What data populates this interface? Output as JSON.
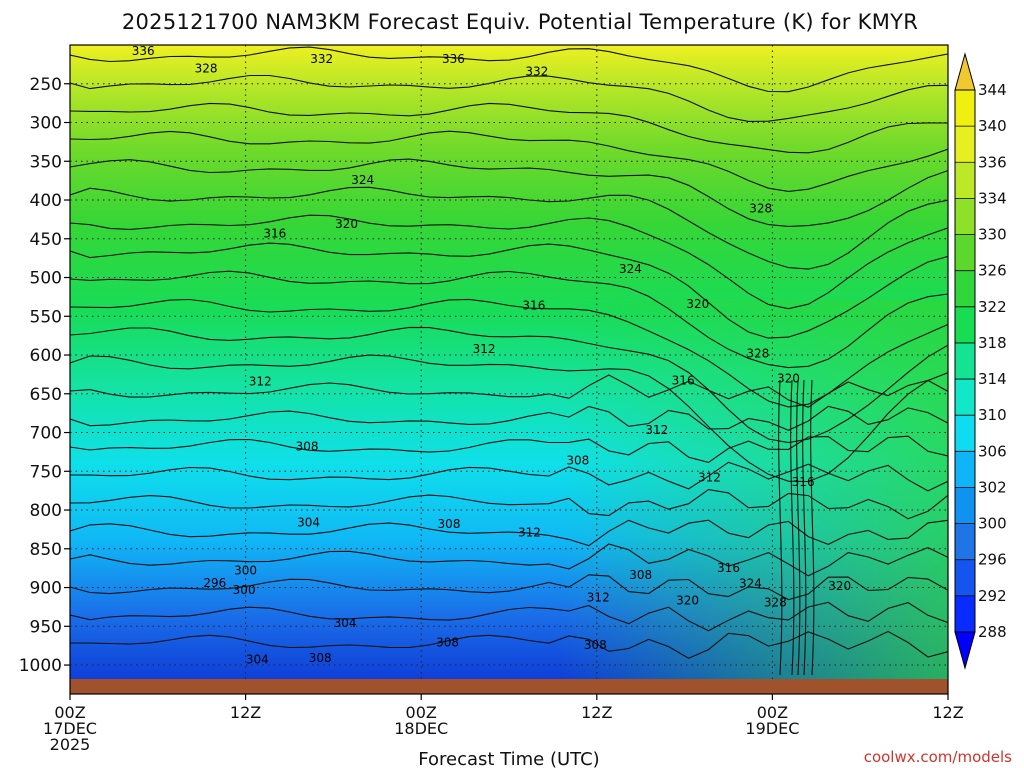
{
  "chart_data": {
    "type": "heatmap",
    "title": "2025121700 NAM3KM Forecast Equiv. Potential Temperature (K) for KMYR",
    "xlabel": "Forecast Time (UTC)",
    "ylabel": "",
    "x_ticks": [
      {
        "hour": 0,
        "line1": "00Z",
        "line2": "17DEC",
        "line3": "2025"
      },
      {
        "hour": 12,
        "line1": "12Z",
        "line2": "",
        "line3": ""
      },
      {
        "hour": 24,
        "line1": "00Z",
        "line2": "18DEC",
        "line3": ""
      },
      {
        "hour": 36,
        "line1": "12Z",
        "line2": "",
        "line3": ""
      },
      {
        "hour": 48,
        "line1": "00Z",
        "line2": "19DEC",
        "line3": ""
      },
      {
        "hour": 60,
        "line1": "12Z",
        "line2": "",
        "line3": ""
      }
    ],
    "y_ticks": [
      250,
      300,
      350,
      400,
      450,
      500,
      550,
      600,
      650,
      700,
      750,
      800,
      850,
      900,
      950,
      1000
    ],
    "y_range_hpa": [
      1018,
      200
    ],
    "x_range_hours": [
      0,
      60
    ],
    "colorbar": {
      "levels": [
        288,
        292,
        296,
        300,
        302,
        306,
        310,
        314,
        318,
        322,
        326,
        330,
        334,
        336,
        340,
        344
      ],
      "colors": [
        "#0000ff",
        "#0a2bff",
        "#1654f0",
        "#1f74e6",
        "#0f93ee",
        "#10b5f8",
        "#0fdcf0",
        "#12e8c8",
        "#14e394",
        "#18dc52",
        "#30d63a",
        "#5cd82c",
        "#8ee028",
        "#bce828",
        "#e6f020",
        "#f0f010",
        "#f2c830"
      ]
    },
    "contour_labels": [
      {
        "h": 5.0,
        "p": 208,
        "t": "336"
      },
      {
        "h": 17.2,
        "p": 218,
        "t": "332"
      },
      {
        "h": 26.2,
        "p": 218,
        "t": "336"
      },
      {
        "h": 31.9,
        "p": 234,
        "t": "332"
      },
      {
        "h": 9.3,
        "p": 230,
        "t": "328"
      },
      {
        "h": 20.0,
        "p": 374,
        "t": "324"
      },
      {
        "h": 18.9,
        "p": 431,
        "t": "320"
      },
      {
        "h": 14.0,
        "p": 443,
        "t": "316"
      },
      {
        "h": 31.7,
        "p": 536,
        "t": "316"
      },
      {
        "h": 38.3,
        "p": 489,
        "t": "324"
      },
      {
        "h": 42.9,
        "p": 534,
        "t": "320"
      },
      {
        "h": 47.2,
        "p": 411,
        "t": "328"
      },
      {
        "h": 28.3,
        "p": 592,
        "t": "312"
      },
      {
        "h": 13.0,
        "p": 634,
        "t": "312"
      },
      {
        "h": 16.2,
        "p": 718,
        "t": "308"
      },
      {
        "h": 41.9,
        "p": 633,
        "t": "316"
      },
      {
        "h": 40.1,
        "p": 697,
        "t": "312"
      },
      {
        "h": 47.0,
        "p": 598,
        "t": "328"
      },
      {
        "h": 49.1,
        "p": 630,
        "t": "320"
      },
      {
        "h": 34.7,
        "p": 736,
        "t": "308"
      },
      {
        "h": 43.7,
        "p": 758,
        "t": "312"
      },
      {
        "h": 16.3,
        "p": 816,
        "t": "304"
      },
      {
        "h": 25.9,
        "p": 818,
        "t": "308"
      },
      {
        "h": 31.4,
        "p": 829,
        "t": "312"
      },
      {
        "h": 12.0,
        "p": 878,
        "t": "300"
      },
      {
        "h": 9.9,
        "p": 894,
        "t": "296"
      },
      {
        "h": 11.9,
        "p": 903,
        "t": "300"
      },
      {
        "h": 18.8,
        "p": 946,
        "t": "304"
      },
      {
        "h": 39.0,
        "p": 884,
        "t": "308"
      },
      {
        "h": 45.0,
        "p": 875,
        "t": "316"
      },
      {
        "h": 46.5,
        "p": 895,
        "t": "324"
      },
      {
        "h": 50.1,
        "p": 764,
        "t": "316"
      },
      {
        "h": 52.6,
        "p": 898,
        "t": "320"
      },
      {
        "h": 48.2,
        "p": 919,
        "t": "328"
      },
      {
        "h": 42.2,
        "p": 917,
        "t": "320"
      },
      {
        "h": 36.1,
        "p": 913,
        "t": "312"
      },
      {
        "h": 25.8,
        "p": 971,
        "t": "308"
      },
      {
        "h": 35.9,
        "p": 974,
        "t": "308"
      },
      {
        "h": 12.8,
        "p": 993,
        "t": "304"
      },
      {
        "h": 17.1,
        "p": 991,
        "t": "308"
      }
    ],
    "grid": true
  },
  "colors": {
    "ground": "#a0522d",
    "credit": "#d0342c"
  },
  "credit": "coolwx.com/models"
}
